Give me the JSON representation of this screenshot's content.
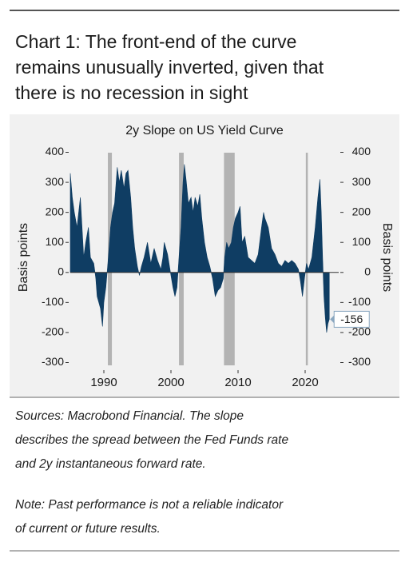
{
  "header": {
    "title_lines": [
      "Chart 1: The front-end of the curve",
      "remains unusually inverted, given that",
      "there is no recession in sight"
    ]
  },
  "chart_data": {
    "type": "area",
    "title": "2y Slope on US Yield Curve",
    "ylabel": "Basis points",
    "y2label": "Basis points",
    "xlim": [
      1985,
      2025
    ],
    "xticks": [
      1990,
      2000,
      2010,
      2020
    ],
    "ylim": [
      -320,
      420
    ],
    "yticks": [
      -300,
      -200,
      -100,
      0,
      100,
      200,
      300,
      400
    ],
    "y2lim": [
      -320,
      420
    ],
    "y2ticks": [
      -300,
      -200,
      -100,
      0,
      100,
      200,
      300,
      400
    ],
    "recessions": [
      {
        "start": 1990.6,
        "end": 1991.2
      },
      {
        "start": 2001.2,
        "end": 2001.9
      },
      {
        "start": 2007.9,
        "end": 2009.5
      },
      {
        "start": 2020.1,
        "end": 2020.4
      }
    ],
    "recession_color": "#b3b3b3",
    "series": [
      {
        "name": "2y Slope",
        "color": "#0f3d63",
        "x": [
          1985.0,
          1985.3,
          1985.6,
          1986.0,
          1986.5,
          1987.0,
          1987.3,
          1987.7,
          1988.0,
          1988.5,
          1988.8,
          1989.0,
          1989.5,
          1989.8,
          1990.0,
          1990.3,
          1990.6,
          1991.0,
          1991.3,
          1991.6,
          1992.0,
          1992.3,
          1992.6,
          1993.0,
          1993.3,
          1993.6,
          1994.0,
          1994.3,
          1994.6,
          1995.0,
          1995.3,
          1995.6,
          1996.0,
          1996.5,
          1997.0,
          1997.5,
          1998.0,
          1998.5,
          1998.8,
          1999.0,
          1999.5,
          2000.0,
          2000.3,
          2000.6,
          2000.9,
          2001.2,
          2001.5,
          2001.8,
          2002.0,
          2002.3,
          2002.6,
          2003.0,
          2003.3,
          2003.6,
          2004.0,
          2004.3,
          2004.6,
          2005.0,
          2005.4,
          2005.8,
          2006.2,
          2006.6,
          2007.0,
          2007.4,
          2007.8,
          2008.0,
          2008.3,
          2008.6,
          2009.0,
          2009.3,
          2009.6,
          2010.0,
          2010.3,
          2010.6,
          2011.0,
          2011.5,
          2012.0,
          2012.5,
          2013.0,
          2013.5,
          2013.8,
          2014.0,
          2014.5,
          2015.0,
          2015.5,
          2016.0,
          2016.5,
          2017.0,
          2017.5,
          2018.0,
          2018.5,
          2019.0,
          2019.3,
          2019.6,
          2019.9,
          2020.2,
          2020.5,
          2021.0,
          2021.5,
          2021.9,
          2022.2,
          2022.4,
          2022.6,
          2022.8,
          2023.0,
          2023.2,
          2023.4,
          2023.6
        ],
        "values": [
          330,
          250,
          200,
          150,
          250,
          50,
          100,
          150,
          50,
          30,
          -20,
          -80,
          -120,
          -180,
          -100,
          -50,
          30,
          150,
          200,
          230,
          350,
          300,
          340,
          280,
          330,
          340,
          250,
          150,
          80,
          20,
          -10,
          20,
          50,
          100,
          30,
          80,
          40,
          10,
          50,
          100,
          60,
          -10,
          -50,
          -80,
          -50,
          50,
          150,
          300,
          360,
          300,
          230,
          250,
          200,
          250,
          220,
          260,
          180,
          100,
          50,
          20,
          -20,
          -80,
          -60,
          -50,
          -20,
          50,
          100,
          80,
          100,
          150,
          180,
          200,
          220,
          100,
          120,
          50,
          40,
          30,
          60,
          150,
          200,
          180,
          150,
          80,
          60,
          30,
          20,
          40,
          30,
          40,
          30,
          10,
          -30,
          -80,
          -20,
          30,
          10,
          50,
          150,
          250,
          310,
          200,
          50,
          -80,
          -150,
          -200,
          -170,
          -156
        ]
      }
    ]
  },
  "sources_lines": [
    "Sources: Macrobond Financial. The slope",
    "describes the spread between the Fed Funds rate",
    "and 2y instantaneous forward rate."
  ],
  "note_lines": [
    "Note: Past performance is not a reliable indicator",
    "of current or future results."
  ]
}
